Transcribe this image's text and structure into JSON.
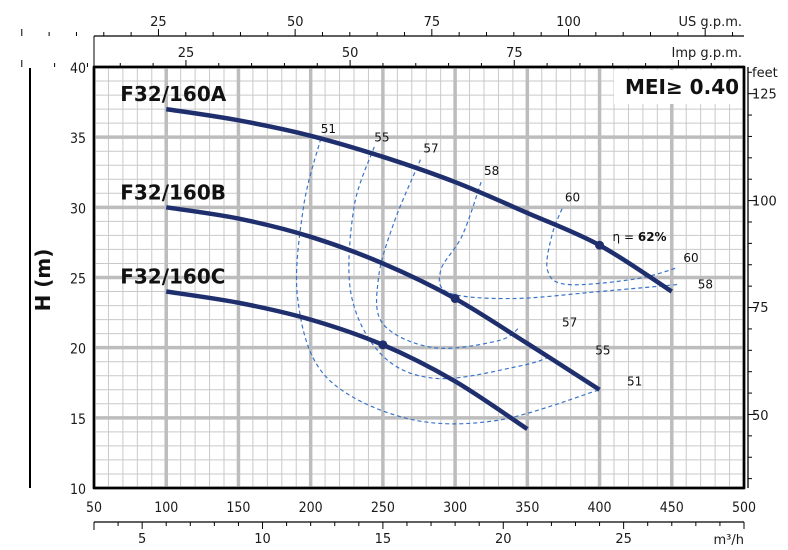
{
  "chart_data": {
    "type": "line",
    "ylabel": "H (m)",
    "badge": "MEI≥ 0.40",
    "units": {
      "us_gpm": "US g.p.m.",
      "imp_gpm": "Imp g.p.m.",
      "feet": "feet",
      "m3h": "m³/h"
    },
    "xlim": [
      50,
      500
    ],
    "ylim": [
      10,
      40
    ],
    "x_ticks": [
      50,
      100,
      150,
      200,
      250,
      300,
      350,
      400,
      450,
      500
    ],
    "y_ticks": [
      10,
      15,
      20,
      25,
      30,
      35,
      40
    ],
    "us_gpm_ticks": [
      {
        "label": "25",
        "x": 94.6
      },
      {
        "label": "50",
        "x": 189.3
      },
      {
        "label": "75",
        "x": 283.9
      },
      {
        "label": "100",
        "x": 378.5
      }
    ],
    "imp_gpm_ticks": [
      {
        "label": "25",
        "x": 113.7
      },
      {
        "label": "50",
        "x": 227.3
      },
      {
        "label": "75",
        "x": 341.0
      }
    ],
    "feet_ticks": [
      {
        "label": "125",
        "y": 38.1
      },
      {
        "label": "100",
        "y": 30.5
      },
      {
        "label": "75",
        "y": 22.9
      },
      {
        "label": "50",
        "y": 15.2
      }
    ],
    "m3h_ticks": [
      {
        "label": "5",
        "x": 83.3
      },
      {
        "label": "10",
        "x": 166.7
      },
      {
        "label": "15",
        "x": 250
      },
      {
        "label": "20",
        "x": 333.3
      },
      {
        "label": "25",
        "x": 416.7
      }
    ],
    "grid": true,
    "series": [
      {
        "name": "F32/160A",
        "x": [
          100,
          150,
          200,
          250,
          300,
          350,
          400,
          450
        ],
        "y": [
          37.0,
          36.2,
          35.1,
          33.6,
          31.8,
          29.6,
          27.3,
          24.0
        ]
      },
      {
        "name": "F32/160B",
        "x": [
          100,
          150,
          200,
          250,
          300,
          350,
          400
        ],
        "y": [
          30.0,
          29.2,
          27.9,
          26.0,
          23.5,
          20.3,
          17.0
        ]
      },
      {
        "name": "F32/160C",
        "x": [
          100,
          150,
          200,
          250,
          300,
          350
        ],
        "y": [
          24.0,
          23.2,
          22.0,
          20.2,
          17.6,
          14.2
        ]
      }
    ],
    "markers": [
      {
        "x": 400,
        "y": 27.3
      },
      {
        "x": 300,
        "y": 23.5
      },
      {
        "x": 250,
        "y": 20.2
      }
    ],
    "efficiency_curves": [
      {
        "label": "51",
        "x": [
          207,
          195,
          191,
          210,
          265,
          328,
          400
        ],
        "y": [
          34.9,
          30,
          23.5,
          18.0,
          15.0,
          14.8,
          17.0
        ]
      },
      {
        "label": "55",
        "x": [
          244,
          230,
          228,
          250,
          288,
          345,
          367
        ],
        "y": [
          34.3,
          30,
          23.8,
          19.4,
          17.8,
          18.7,
          19.4
        ]
      },
      {
        "label": "57",
        "x": [
          276,
          258,
          247,
          250,
          285,
          330,
          345
        ],
        "y": [
          33.4,
          29,
          25,
          21.7,
          20.0,
          20.5,
          21.5
        ]
      },
      {
        "label": "58",
        "x": [
          318,
          305,
          290,
          296,
          340,
          400,
          454
        ],
        "y": [
          31.8,
          28,
          25.5,
          23.9,
          23.5,
          24.0,
          24.5
        ]
      },
      {
        "label": "60",
        "x": [
          374,
          367,
          364,
          378,
          425,
          454
        ],
        "y": [
          29.9,
          28,
          25.5,
          24.5,
          24.9,
          25.7
        ]
      }
    ],
    "efficiency_labels": [
      {
        "text": "51",
        "x": 207,
        "y": 35.3
      },
      {
        "text": "55",
        "x": 244,
        "y": 34.7
      },
      {
        "text": "57",
        "x": 278,
        "y": 33.9
      },
      {
        "text": "58",
        "x": 320,
        "y": 32.3
      },
      {
        "text": "60",
        "x": 376,
        "y": 30.4
      },
      {
        "text": "60",
        "x": 458,
        "y": 26.1
      },
      {
        "text": "58",
        "x": 468,
        "y": 24.2
      },
      {
        "text": "57",
        "x": 374,
        "y": 21.5
      },
      {
        "text": "55",
        "x": 397,
        "y": 19.5
      },
      {
        "text": "51",
        "x": 419,
        "y": 17.3
      }
    ],
    "eta_label": {
      "prefix": "η = ",
      "value": "62%",
      "x": 409,
      "y": 27.6
    }
  }
}
